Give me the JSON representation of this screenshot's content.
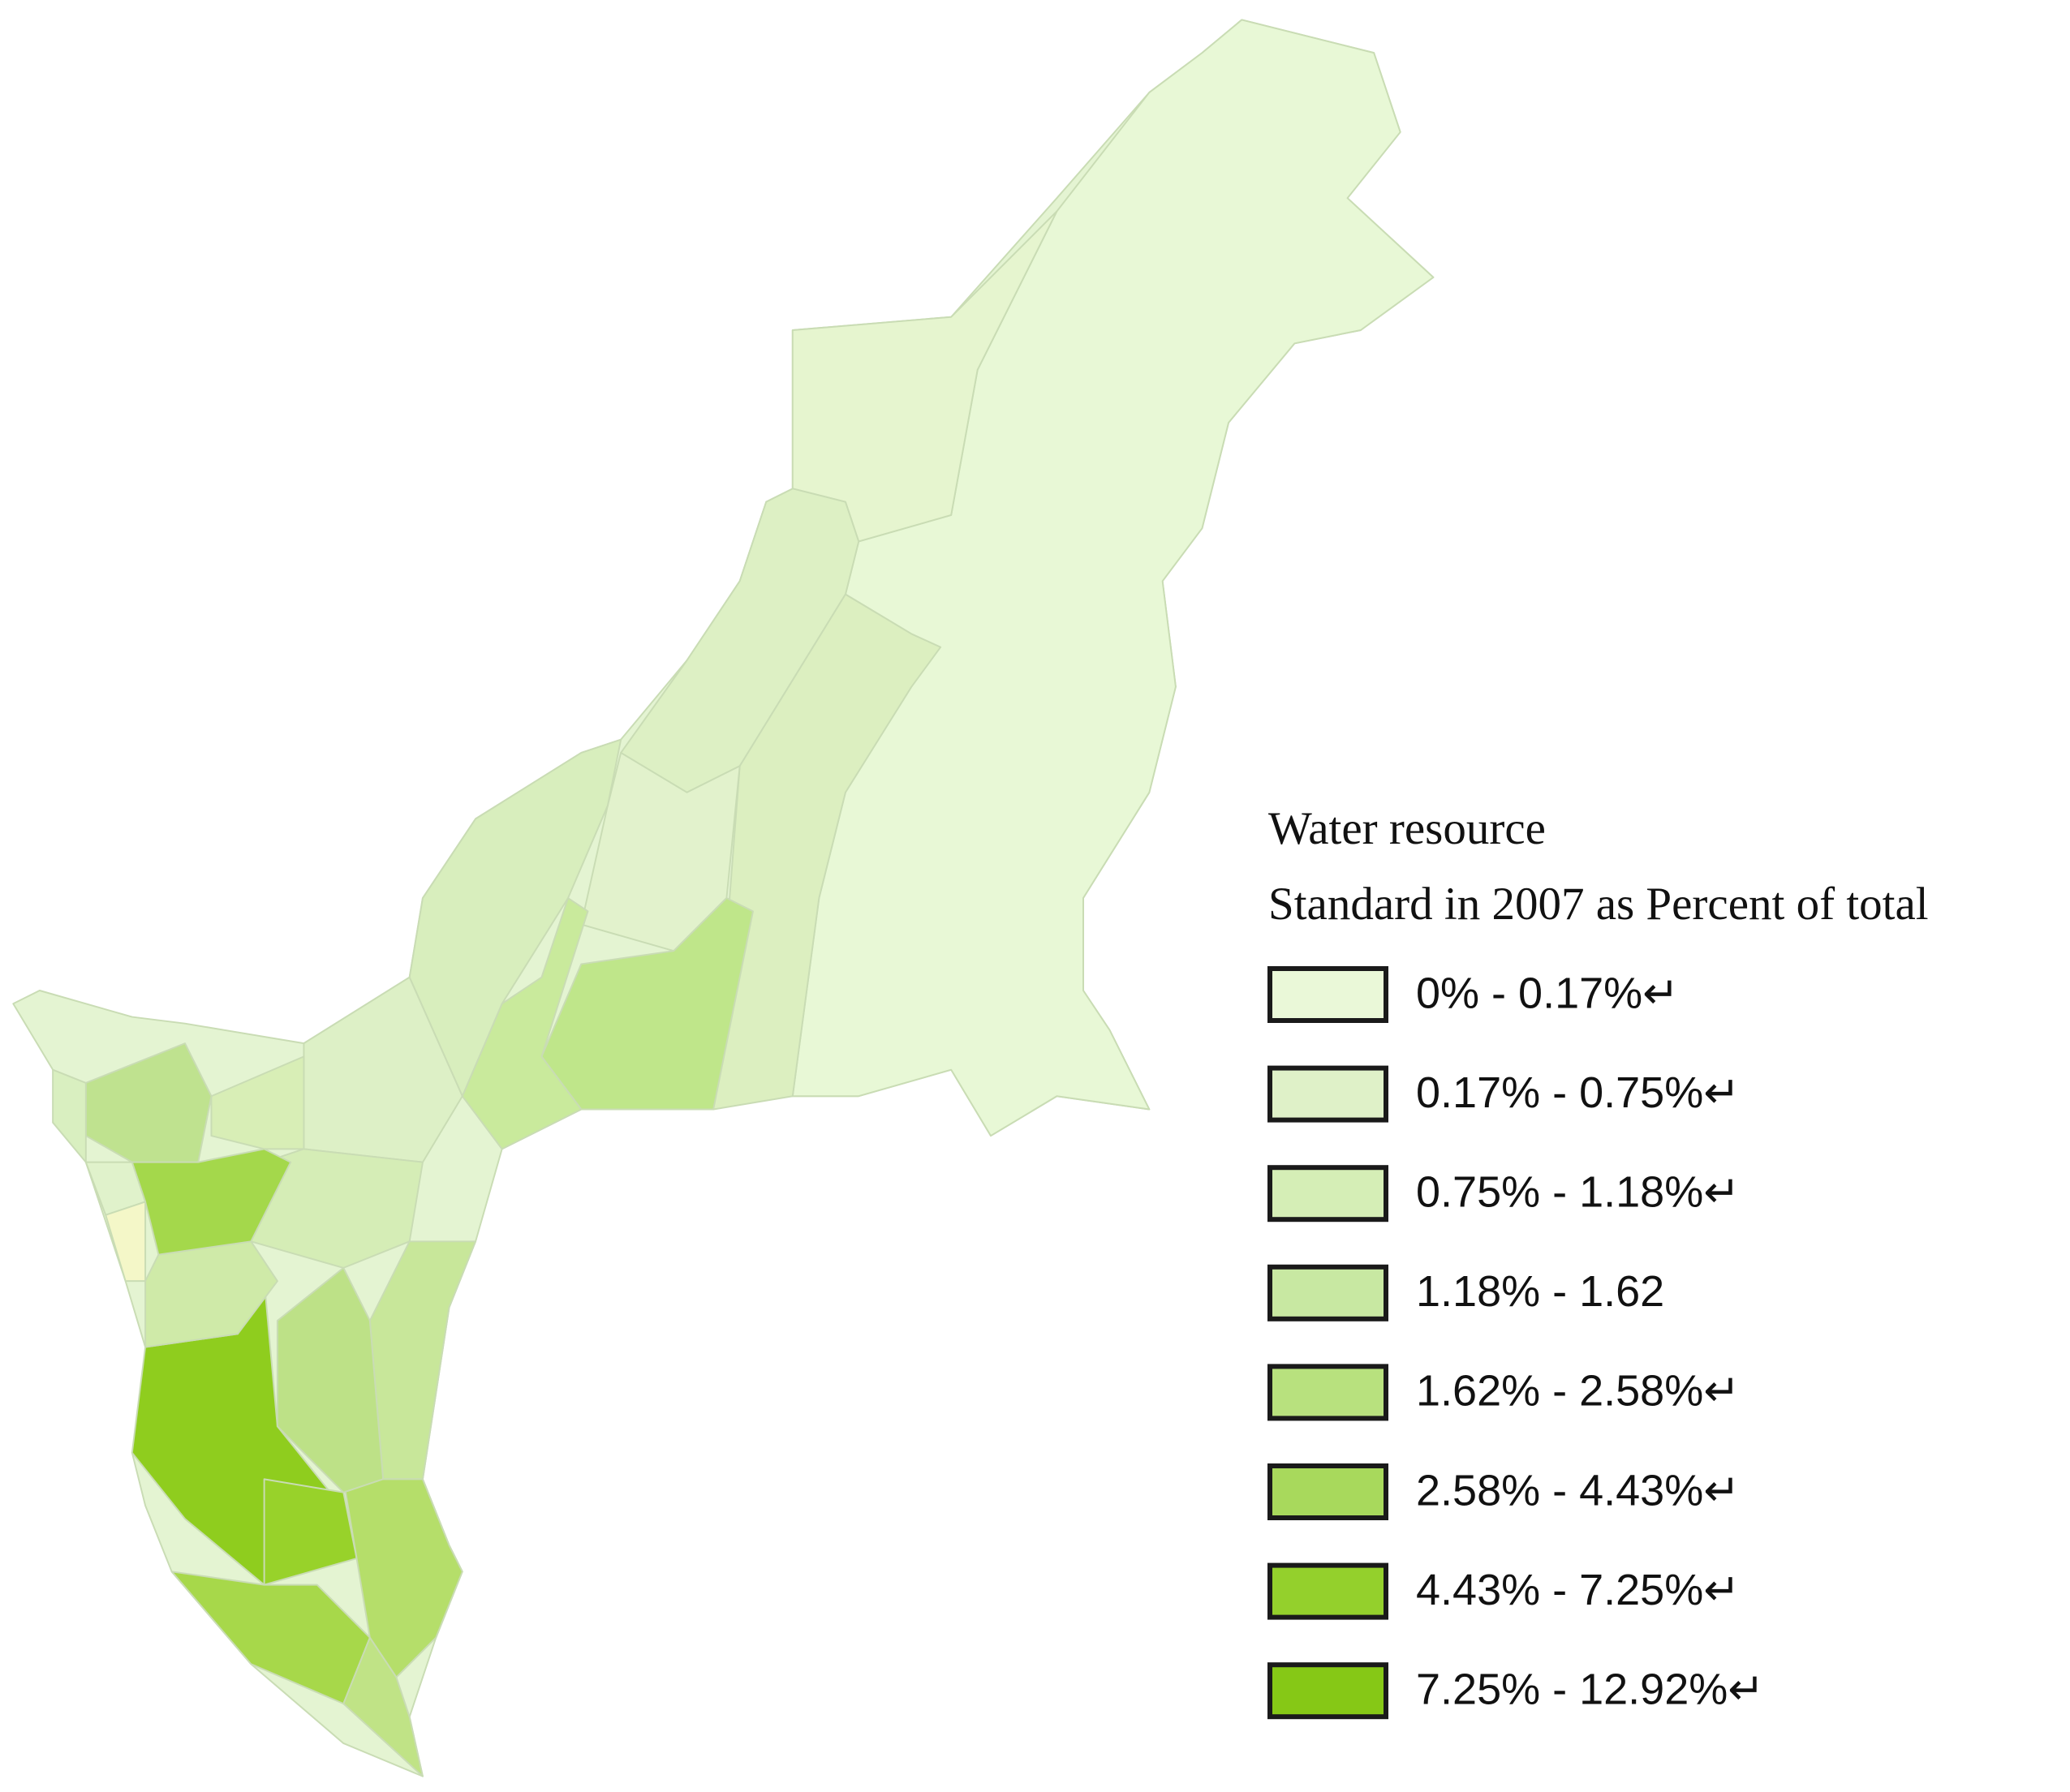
{
  "legend": {
    "title_lines": [
      "Water resource",
      "Standard in 2007 as Percent of total"
    ],
    "items": [
      {
        "label": "0% - 0.17%↵",
        "color": "#eaf8d8"
      },
      {
        "label": "0.17% - 0.75%↵",
        "color": "#dff1c8"
      },
      {
        "label": "0.75% - 1.18%↵",
        "color": "#d5eeb6"
      },
      {
        "label": "1.18% - 1.62",
        "color": "#c8e8a2"
      },
      {
        "label": "1.62% - 2.58%↵",
        "color": "#b8e17e"
      },
      {
        "label": "2.58% - 4.43%↵",
        "color": "#a8d95c"
      },
      {
        "label": "4.43% - 7.25%↵",
        "color": "#94d02c"
      },
      {
        "label": "7.25% - 12.92%↵",
        "color": "#86c816"
      }
    ]
  }
}
